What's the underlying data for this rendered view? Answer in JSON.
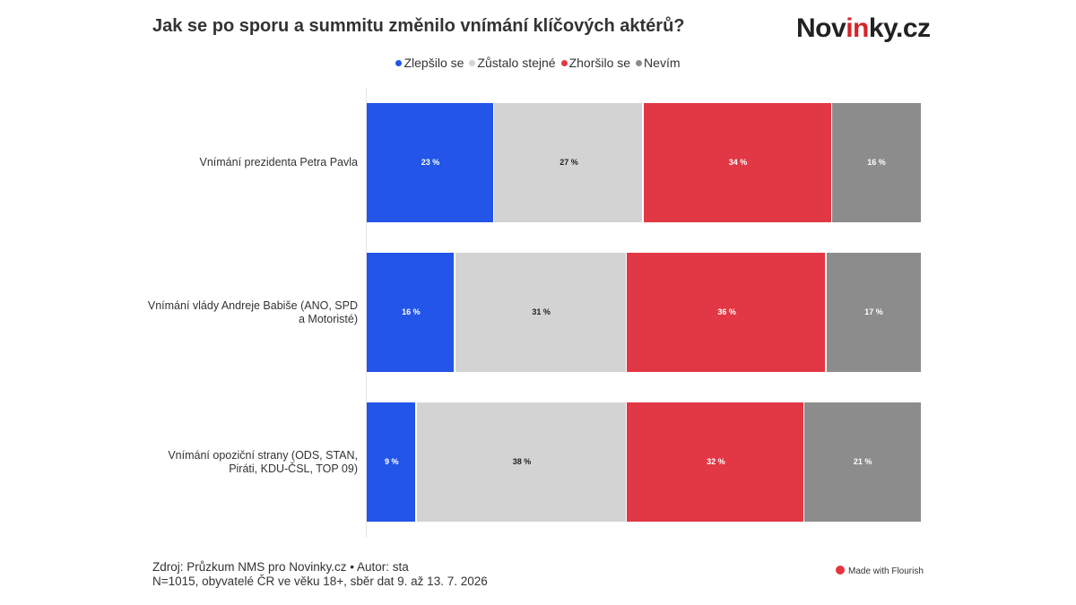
{
  "header": {
    "title": "Jak se po sporu a summitu změnilo vnímání klíčových aktérů?",
    "logo": {
      "part1": "Nov",
      "part2": "in",
      "part3": "ky.cz"
    }
  },
  "colors": {
    "improved": "#2255e8",
    "same": "#d3d3d3",
    "worse": "#e23744",
    "dont_know": "#8c8c8c"
  },
  "chart_data": {
    "type": "bar",
    "orientation": "horizontal",
    "stacked": true,
    "categories": [
      [
        "Vnímání prezidenta Petra Pavla"
      ],
      [
        "Vnímání vlády Andreje Babiše (ANO, SPD",
        "a Motoristé)"
      ],
      [
        "Vnímání opoziční strany (ODS, STAN,",
        "Piráti, KDU-ČSL, TOP 09)"
      ]
    ],
    "series": [
      {
        "name": "Zlepšilo se",
        "color": "#2255e8",
        "values": [
          23,
          16,
          9
        ]
      },
      {
        "name": "Zůstalo stejné",
        "color": "#d3d3d3",
        "values": [
          27,
          31,
          38
        ]
      },
      {
        "name": "Zhoršilo se",
        "color": "#e23744",
        "values": [
          34,
          36,
          32
        ]
      },
      {
        "name": "Nevím",
        "color": "#8c8c8c",
        "values": [
          16,
          17,
          21
        ]
      }
    ],
    "value_suffix": " %",
    "xlim": [
      0,
      100
    ],
    "grid": false,
    "legend_position": "top-center"
  },
  "footer": {
    "source_line": "Zdroj: Průzkum NMS pro Novinky.cz • Autor: sta",
    "sample_line": "N=1015, obyvatelé ČR ve věku 18+, sběr dat 9. až 13. 7. 2026",
    "credit": "Made with Flourish"
  }
}
